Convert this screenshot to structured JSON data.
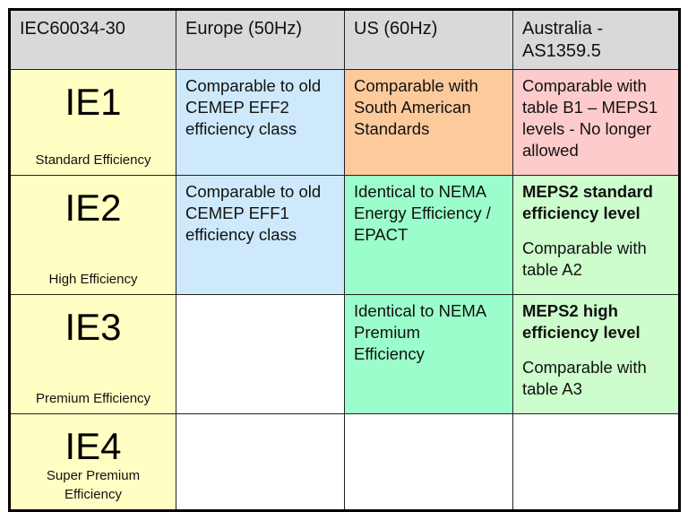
{
  "table": {
    "header": [
      "IEC60034-30",
      "Europe (50Hz)",
      "US (60Hz)",
      "Australia - AS1359.5"
    ],
    "rows": [
      {
        "class": "IE1",
        "description": "Standard Efficiency",
        "cells": [
          {
            "color": "#cde9fb",
            "paragraphs": [
              {
                "bold": false,
                "lines": [
                  "Comparable to old",
                  "CEMEP EFF2",
                  "efficiency class"
                ]
              }
            ]
          },
          {
            "color": "#fdca9b",
            "paragraphs": [
              {
                "bold": false,
                "lines": [
                  "Comparable with",
                  "South American",
                  "Standards"
                ]
              }
            ]
          },
          {
            "color": "#fdcbcb",
            "paragraphs": [
              {
                "bold": false,
                "lines": [
                  "Comparable with",
                  "table B1 – MEPS1",
                  "levels - No longer",
                  "allowed"
                ]
              }
            ]
          }
        ]
      },
      {
        "class": "IE2",
        "description": "High Efficiency",
        "cells": [
          {
            "color": "#cde9fb",
            "paragraphs": [
              {
                "bold": false,
                "lines": [
                  "Comparable to old",
                  "CEMEP EFF1",
                  "efficiency class"
                ]
              }
            ]
          },
          {
            "color": "#9bfdcb",
            "paragraphs": [
              {
                "bold": false,
                "lines": [
                  "Identical to NEMA",
                  "Energy Efficiency /",
                  "EPACT"
                ]
              }
            ]
          },
          {
            "color": "#cdfdcd",
            "paragraphs": [
              {
                "bold": true,
                "lines": [
                  "MEPS2 standard",
                  "efficiency level"
                ]
              },
              {
                "bold": false,
                "lines": [
                  "Comparable with",
                  "table A2"
                ]
              }
            ]
          }
        ]
      },
      {
        "class": "IE3",
        "description": "Premium Efficiency",
        "cells": [
          {
            "color": "#ffffff",
            "paragraphs": []
          },
          {
            "color": "#9bfdcb",
            "paragraphs": [
              {
                "bold": false,
                "lines": [
                  "Identical to NEMA",
                  "Premium",
                  "Efficiency"
                ]
              }
            ]
          },
          {
            "color": "#cdfdcd",
            "paragraphs": [
              {
                "bold": true,
                "lines": [
                  "MEPS2 high",
                  "efficiency level"
                ]
              },
              {
                "bold": false,
                "lines": [
                  "Comparable with",
                  "table A3"
                ]
              }
            ]
          }
        ]
      },
      {
        "class": "IE4",
        "description": "Super Premium Efficiency",
        "cells": [
          {
            "color": "#ffffff",
            "paragraphs": []
          },
          {
            "color": "#ffffff",
            "paragraphs": []
          },
          {
            "color": "#ffffff",
            "paragraphs": []
          }
        ]
      }
    ]
  }
}
